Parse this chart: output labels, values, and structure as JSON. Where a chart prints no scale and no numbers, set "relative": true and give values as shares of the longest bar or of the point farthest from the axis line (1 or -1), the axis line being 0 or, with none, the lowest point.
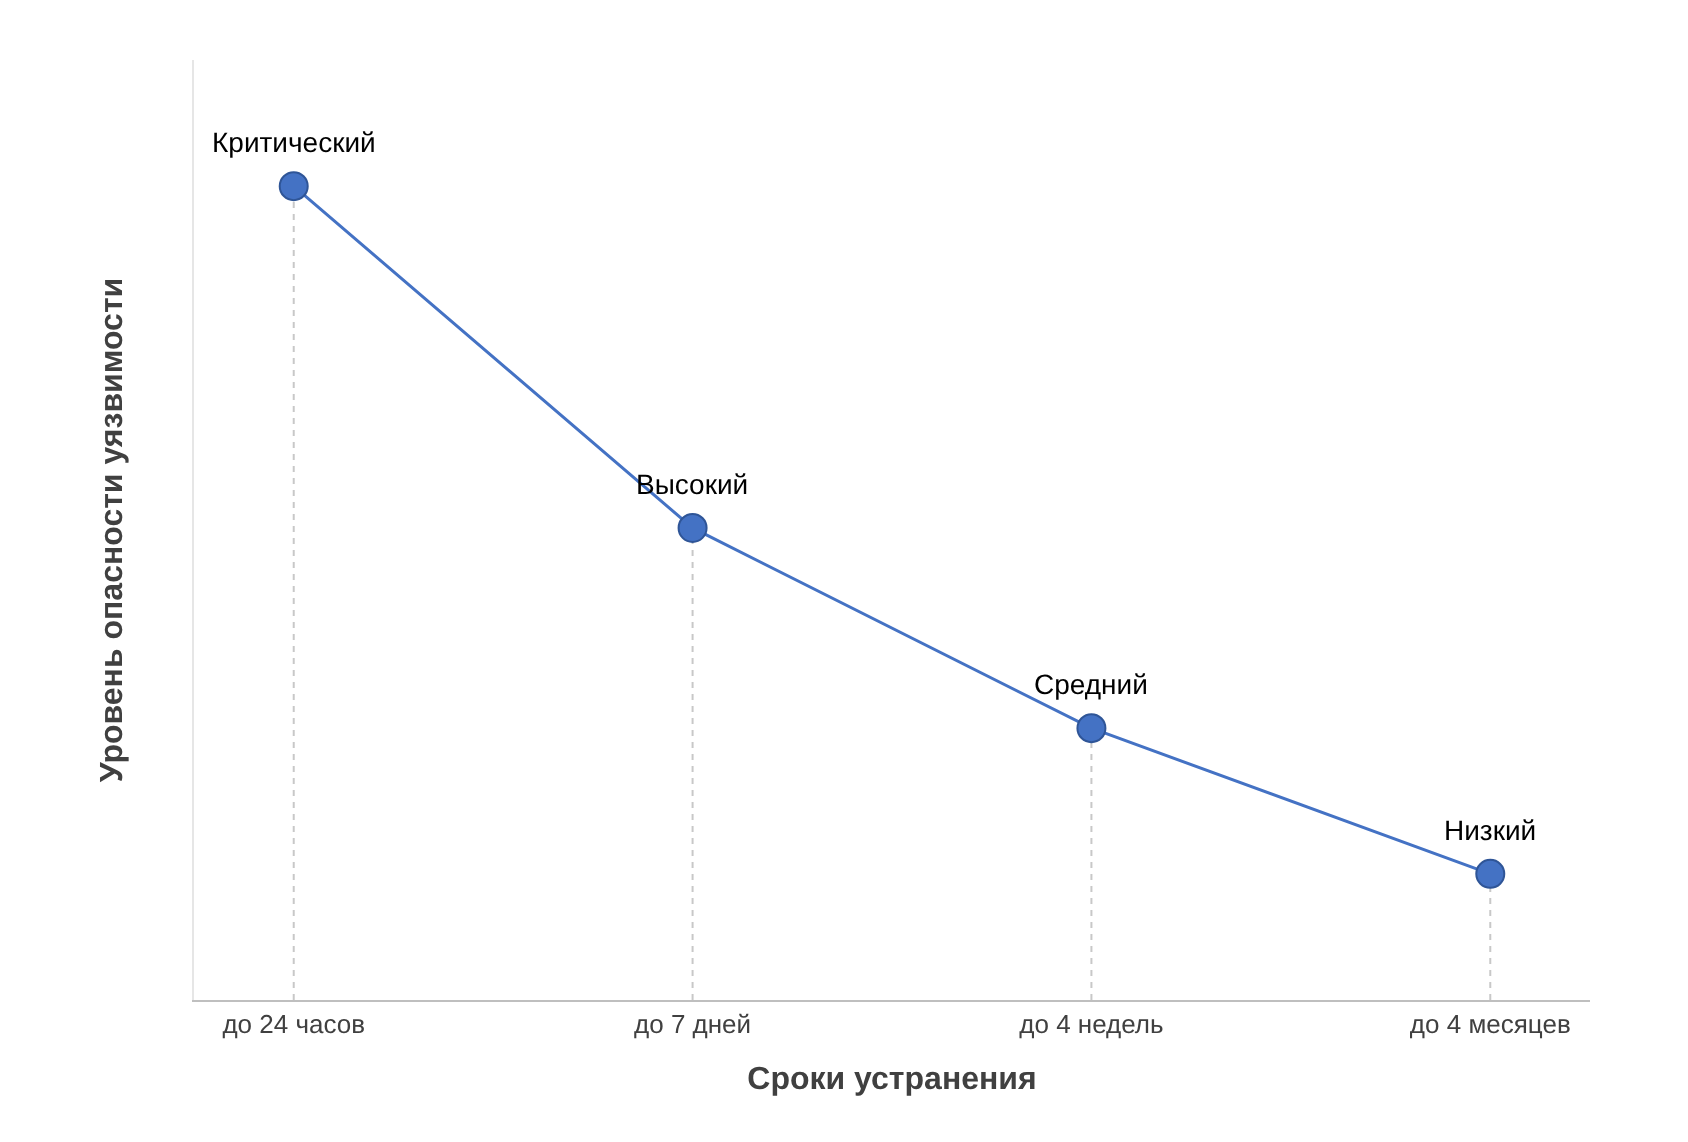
{
  "chart_data": {
    "type": "line",
    "relative": true,
    "xlabel": "Сроки устранения",
    "ylabel": "Уровень опасности уязвимости",
    "categories": [
      "до 24 часов",
      "до 7 дней",
      "до 4 недель",
      "до 4 месяцев"
    ],
    "series": [
      {
        "color": "#4472c4",
        "values": [
          1,
          0.58,
          0.334,
          0.155
        ]
      }
    ],
    "marker": "circle",
    "grid": "x",
    "annotations": [
      {
        "text": "Критический",
        "x": "до 24 часов",
        "y": 1
      },
      {
        "text": "Высокий",
        "x": "до 7 дней",
        "y": 0.58
      },
      {
        "text": "Средний",
        "x": "до 4 недель",
        "y": 0.334
      },
      {
        "text": "Низкий",
        "x": "до 4 месяцев",
        "y": 0.155
      }
    ]
  }
}
